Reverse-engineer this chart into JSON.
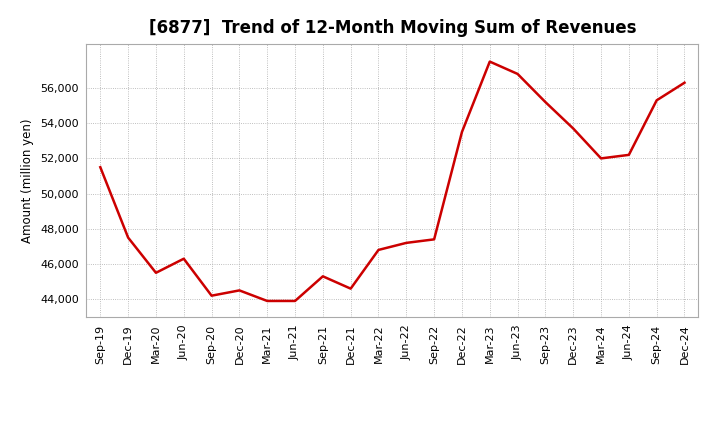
{
  "title": "[6877]  Trend of 12-Month Moving Sum of Revenues",
  "ylabel": "Amount (million yen)",
  "line_color": "#cc0000",
  "background_color": "#ffffff",
  "plot_bg_color": "#ffffff",
  "grid_color": "#aaaaaa",
  "labels": [
    "Sep-19",
    "Dec-19",
    "Mar-20",
    "Jun-20",
    "Sep-20",
    "Dec-20",
    "Mar-21",
    "Jun-21",
    "Sep-21",
    "Dec-21",
    "Mar-22",
    "Jun-22",
    "Sep-22",
    "Dec-22",
    "Mar-23",
    "Jun-23",
    "Sep-23",
    "Dec-23",
    "Mar-24",
    "Jun-24",
    "Sep-24",
    "Dec-24"
  ],
  "values": [
    51500,
    47500,
    45500,
    46300,
    44200,
    44500,
    43900,
    43900,
    45300,
    44600,
    46800,
    47200,
    47400,
    53500,
    57500,
    56800,
    55200,
    53700,
    52000,
    52200,
    55300,
    56300
  ],
  "ylim_min": 43000,
  "ylim_max": 58500,
  "yticks": [
    44000,
    46000,
    48000,
    50000,
    52000,
    54000,
    56000
  ],
  "title_fontsize": 12,
  "label_fontsize": 8.5,
  "tick_fontsize": 8,
  "linewidth": 1.8
}
